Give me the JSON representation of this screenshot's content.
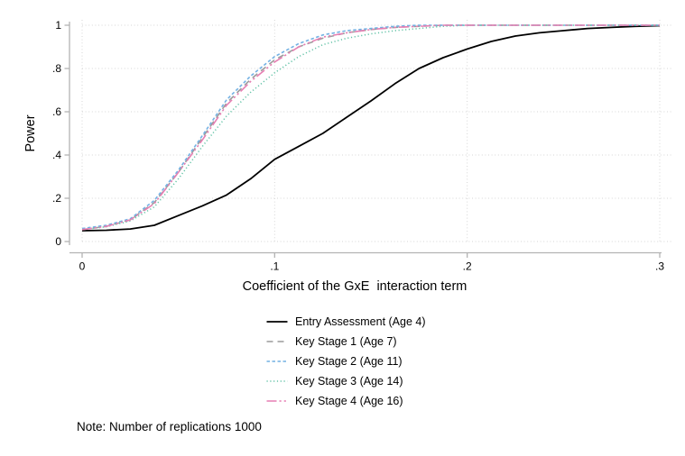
{
  "chart_data": {
    "type": "line",
    "title": "",
    "xlabel": "Coefficient of the GxE  interaction term",
    "ylabel": "Power",
    "xlim": [
      0,
      0.3
    ],
    "ylim": [
      0,
      1
    ],
    "x_ticks": [
      "0",
      ".1",
      ".2",
      ".3"
    ],
    "x_tick_values": [
      0,
      0.1,
      0.2,
      0.3
    ],
    "y_ticks": [
      "0",
      ".2",
      ".4",
      ".6",
      ".8",
      "1"
    ],
    "y_tick_values": [
      0,
      0.2,
      0.4,
      0.6,
      0.8,
      1
    ],
    "grid": true,
    "legend_position": "bottom-center",
    "x": [
      0,
      0.0125,
      0.025,
      0.0375,
      0.05,
      0.0625,
      0.075,
      0.0875,
      0.1,
      0.1125,
      0.125,
      0.1375,
      0.15,
      0.1625,
      0.175,
      0.1875,
      0.2,
      0.2125,
      0.225,
      0.2375,
      0.25,
      0.2625,
      0.275,
      0.2875,
      0.3
    ],
    "series": [
      {
        "label": "Entry Assessment (Age 4)",
        "color": "#000000",
        "dash": "solid",
        "width": 1.8,
        "values": [
          0.05,
          0.052,
          0.058,
          0.075,
          0.12,
          0.165,
          0.215,
          0.29,
          0.38,
          0.44,
          0.5,
          0.575,
          0.65,
          0.73,
          0.8,
          0.85,
          0.89,
          0.925,
          0.95,
          0.965,
          0.975,
          0.985,
          0.99,
          0.995,
          0.998
        ]
      },
      {
        "label": "Key Stage 1 (Age 7)",
        "color": "#9c9c9c",
        "dash": "dash",
        "width": 1.6,
        "values": [
          0.055,
          0.07,
          0.1,
          0.18,
          0.32,
          0.48,
          0.64,
          0.75,
          0.84,
          0.9,
          0.94,
          0.965,
          0.98,
          0.99,
          0.995,
          1,
          1,
          1,
          1,
          1,
          1,
          1,
          1,
          1,
          1
        ]
      },
      {
        "label": "Key Stage 2 (Age 11)",
        "color": "#73b1e3",
        "dash": "shortdash",
        "width": 1.6,
        "values": [
          0.06,
          0.075,
          0.105,
          0.19,
          0.33,
          0.49,
          0.655,
          0.765,
          0.855,
          0.915,
          0.955,
          0.975,
          0.985,
          0.995,
          1,
          1,
          1,
          1,
          1,
          1,
          1,
          1,
          1,
          1,
          1
        ]
      },
      {
        "label": "Key Stage 3 (Age 14)",
        "color": "#63c3a7",
        "dash": "dot",
        "width": 1.5,
        "values": [
          0.055,
          0.068,
          0.095,
          0.16,
          0.29,
          0.44,
          0.58,
          0.69,
          0.78,
          0.855,
          0.91,
          0.94,
          0.96,
          0.975,
          0.985,
          0.995,
          1,
          1,
          1,
          1,
          1,
          1,
          1,
          1,
          1
        ]
      },
      {
        "label": "Key Stage 4 (Age 16)",
        "color": "#e67fb3",
        "dash": "dash_dot_dot",
        "width": 1.6,
        "values": [
          0.055,
          0.07,
          0.1,
          0.175,
          0.32,
          0.47,
          0.63,
          0.74,
          0.83,
          0.9,
          0.945,
          0.965,
          0.98,
          0.99,
          0.995,
          1,
          1,
          1,
          1,
          1,
          1,
          1,
          1,
          1,
          1
        ]
      }
    ]
  },
  "note": "Note: Number of replications 1000",
  "colors": {
    "axis": "#b3b3b3",
    "grid": "#d6d6d6",
    "text": "#000000",
    "background": "#ffffff"
  }
}
